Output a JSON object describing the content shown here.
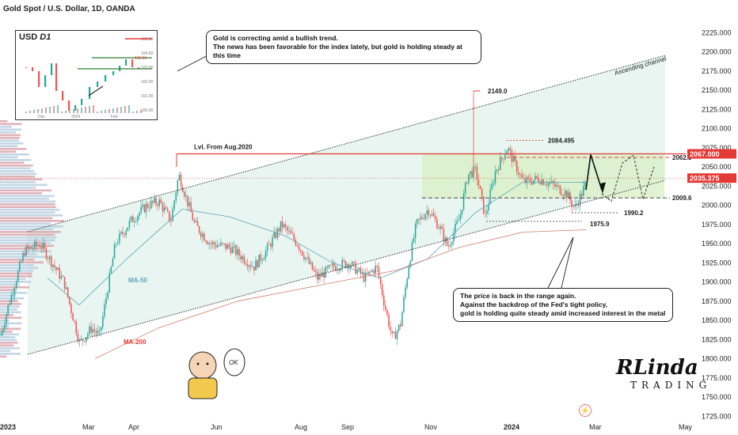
{
  "header": {
    "title": "Gold Spot / U.S. Dollar, 1D, OANDA"
  },
  "colors": {
    "bg": "#ffffff",
    "channel_fill": "#e8f5f0",
    "range_fill": "#d7efc4",
    "resistance": "#e53935",
    "candle_up": "#26a69a",
    "candle_down": "#ef5350",
    "ma50": "#5da6b5",
    "ma200": "#d47a6a"
  },
  "inset": {
    "ticker": "USD",
    "timeframe": "D1",
    "y_ticks": [
      "105.00",
      "104.00",
      "103.00",
      "102.00",
      "101.00",
      "100.00"
    ],
    "price_label": "103.91",
    "x_ticks": [
      "Dec",
      "2024",
      "Feb"
    ]
  },
  "callouts": {
    "top_line1": "Gold is correcting amid a bullish trend.",
    "top_line2": "The news has been favorable for the index lately, but gold is holding steady at this time",
    "bottom_line1": "The price is back in the range again.",
    "bottom_line2": "Against the backdrop of the Fed's tight policy,",
    "bottom_line3": "gold is holding quite steady amid increased interest in the metal"
  },
  "annotations": {
    "ascending_channel": "Ascending channel",
    "lvl_from": "Lvl. From Aug.2020",
    "ma50": "MA-50",
    "ma200": "MA-200",
    "ok": "OK"
  },
  "logo": {
    "brand": "RLinda",
    "sub": "TRADING"
  },
  "chart_data": {
    "type": "candlestick",
    "title": "Gold Spot / U.S. Dollar, 1D, OANDA",
    "x_ticks": [
      "2023",
      "Mar",
      "Apr",
      "Jun",
      "Aug",
      "Sep",
      "Nov",
      "2024",
      "Mar",
      "May"
    ],
    "y_ticks": [
      1725,
      1750,
      1775,
      1800,
      1825,
      1850,
      1875,
      1900,
      1925,
      1950,
      1975,
      2000,
      2025,
      2050,
      2075,
      2100,
      2125,
      2150,
      2175,
      2200,
      2225
    ],
    "y_range": [
      1710,
      2235
    ],
    "price_levels": [
      {
        "label": "2149.0",
        "value": 2149.0
      },
      {
        "label": "2084.495",
        "value": 2084.495
      },
      {
        "label": "2062.3",
        "value": 2062.3
      },
      {
        "label": "2009.6",
        "value": 2009.6
      },
      {
        "label": "1990.2",
        "value": 1990.2
      },
      {
        "label": "1975.9",
        "value": 1975.9
      }
    ],
    "resistance_badge": "2067.000",
    "current_price_badge": "2035.375",
    "anchors": [
      [
        0,
        1830
      ],
      [
        10,
        1870
      ],
      [
        30,
        1940
      ],
      [
        50,
        1950
      ],
      [
        80,
        1900
      ],
      [
        100,
        1820
      ],
      [
        115,
        1840
      ],
      [
        125,
        1830
      ],
      [
        145,
        1950
      ],
      [
        165,
        1980
      ],
      [
        185,
        2000
      ],
      [
        200,
        2005
      ],
      [
        215,
        1980
      ],
      [
        225,
        2040
      ],
      [
        245,
        1975
      ],
      [
        265,
        1950
      ],
      [
        290,
        1945
      ],
      [
        320,
        1920
      ],
      [
        335,
        1940
      ],
      [
        355,
        1975
      ],
      [
        375,
        1950
      ],
      [
        400,
        1905
      ],
      [
        420,
        1920
      ],
      [
        440,
        1925
      ],
      [
        460,
        1905
      ],
      [
        475,
        1920
      ],
      [
        485,
        1870
      ],
      [
        495,
        1825
      ],
      [
        505,
        1845
      ],
      [
        515,
        1920
      ],
      [
        525,
        1975
      ],
      [
        540,
        1995
      ],
      [
        555,
        1970
      ],
      [
        565,
        1945
      ],
      [
        580,
        1985
      ],
      [
        590,
        2040
      ],
      [
        600,
        2045
      ],
      [
        612,
        1985
      ],
      [
        625,
        2045
      ],
      [
        640,
        2075
      ],
      [
        660,
        2030
      ],
      [
        680,
        2035
      ],
      [
        700,
        2025
      ],
      [
        715,
        2015
      ],
      [
        725,
        1995
      ],
      [
        740,
        2030
      ]
    ]
  }
}
